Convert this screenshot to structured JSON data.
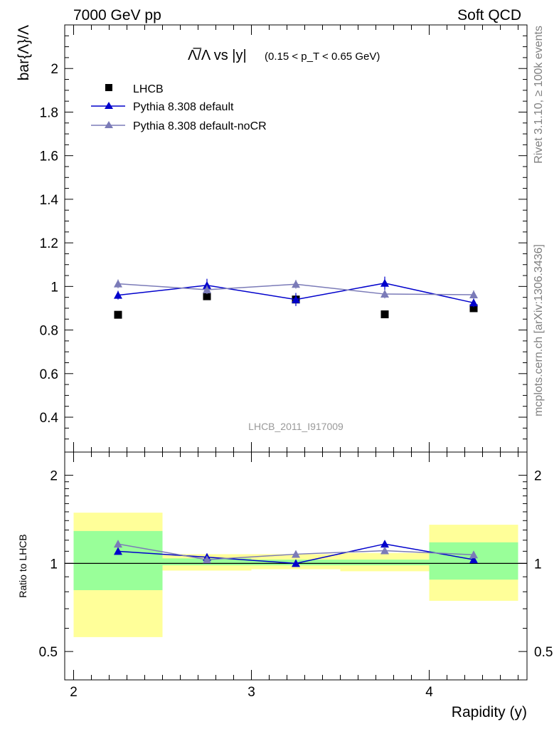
{
  "header": {
    "left": "7000 GeV pp",
    "right": "Soft QCD"
  },
  "side_labels": {
    "top": "Rivet 3.1.10, ≥ 100k events",
    "bottom": "mcplots.cern.ch [arXiv:1306.3436]"
  },
  "title": {
    "main": "Λ̅/Λ vs |y|",
    "cut": "(0.15 < p_T < 0.65 GeV)"
  },
  "watermark": "LHCB_2011_I917009",
  "colors": {
    "data": "#000000",
    "pythia_default": "#0000cc",
    "pythia_nocr": "#7b7bb8",
    "band_inner": "#99ff99",
    "band_outer": "#ffff99",
    "watermark": "#999999",
    "side_text": "#808080"
  },
  "chart_data": [
    {
      "type": "scatter",
      "panel": "main",
      "ylabel": "bar{Λ}/Λ",
      "xlim": [
        1.95,
        4.55
      ],
      "ylim": [
        0.24,
        2.2
      ],
      "yticks": [
        "0.4",
        "0.6",
        "0.8",
        "1",
        "1.2",
        "1.4",
        "1.6",
        "1.8",
        "2"
      ],
      "x": [
        2.25,
        2.75,
        3.25,
        3.75,
        4.25
      ],
      "series": [
        {
          "name": "LHCB",
          "marker": "square",
          "values": [
            0.87,
            0.955,
            0.94,
            0.872,
            0.9
          ],
          "errors": [
            0.005,
            0.006,
            0.01,
            0.006,
            0.01
          ]
        },
        {
          "name": "Pythia 8.308 default",
          "marker": "triangle",
          "values": [
            0.96,
            1.005,
            0.94,
            1.015,
            0.925
          ],
          "errors": [
            0.02,
            0.03,
            0.03,
            0.03,
            0.02
          ]
        },
        {
          "name": "Pythia 8.308 default-noCR",
          "marker": "triangle",
          "values": [
            1.012,
            0.985,
            1.01,
            0.965,
            0.962
          ],
          "errors": [
            0.02,
            0.02,
            0.02,
            0.02,
            0.02
          ]
        }
      ],
      "legend": "top-left"
    },
    {
      "type": "scatter",
      "panel": "ratio",
      "ylabel": "Ratio to LHCB",
      "xlabel": "Rapidity (y)",
      "xlim": [
        1.95,
        4.55
      ],
      "ylim": [
        0.4,
        2.4
      ],
      "yscale": "log",
      "yticks": [
        "0.5",
        "1",
        "2"
      ],
      "xticks": [
        "2",
        "3",
        "4"
      ],
      "reference": 1.0,
      "bands": [
        {
          "x": [
            2.0,
            2.5
          ],
          "inner": [
            0.81,
            1.29
          ],
          "outer": [
            0.56,
            1.49
          ]
        },
        {
          "x": [
            2.5,
            3.0
          ],
          "inner": [
            0.985,
            1.04
          ],
          "outer": [
            0.945,
            1.075
          ]
        },
        {
          "x": [
            3.0,
            3.5
          ],
          "inner": [
            0.985,
            1.03
          ],
          "outer": [
            0.955,
            1.075
          ]
        },
        {
          "x": [
            3.5,
            4.0
          ],
          "inner": [
            0.985,
            1.03
          ],
          "outer": [
            0.94,
            1.085
          ]
        },
        {
          "x": [
            4.0,
            4.5
          ],
          "inner": [
            0.88,
            1.18
          ],
          "outer": [
            0.745,
            1.355
          ]
        }
      ],
      "x": [
        2.25,
        2.75,
        3.25,
        3.75,
        4.25
      ],
      "series": [
        {
          "name": "Pythia 8.308 default",
          "values": [
            1.1,
            1.05,
            1.0,
            1.165,
            1.03
          ],
          "errors": [
            0.02,
            0.03,
            0.02,
            0.03,
            0.02
          ]
        },
        {
          "name": "Pythia 8.308 default-noCR",
          "values": [
            1.165,
            1.03,
            1.075,
            1.105,
            1.07
          ],
          "errors": [
            0.02,
            0.02,
            0.02,
            0.02,
            0.02
          ]
        }
      ]
    }
  ]
}
